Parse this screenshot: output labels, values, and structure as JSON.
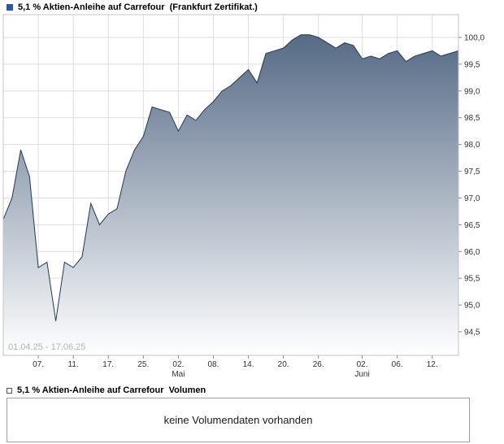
{
  "header": {
    "title": "5,1 % Aktien-Anleihe auf Carrefour  (Frankfurt Zertifikat.)"
  },
  "chart_data": {
    "type": "area",
    "title": "5,1 % Aktien-Anleihe auf Carrefour (Frankfurt Zertifikat.)",
    "date_range": "01.04.25 - 17.06.25",
    "ylim": [
      94.0,
      100.4
    ],
    "grid": true,
    "legend_position": "top-left",
    "colors": {
      "legend": "#2a54b8",
      "line": "#203a55",
      "fill_top": "#4b617e",
      "fill_bottom": "#ffffff",
      "gridline": "#dedede",
      "plot_border": "#c4c4c4",
      "tick": "#8c8c8c",
      "axis_text": "#333333"
    },
    "x": [
      "01.04.25",
      "02.04.25",
      "03.04.25",
      "04.04.25",
      "07.04.25",
      "08.04.25",
      "09.04.25",
      "10.04.25",
      "11.04.25",
      "14.04.25",
      "15.04.25",
      "16.04.25",
      "17.04.25",
      "22.04.25",
      "23.04.25",
      "24.04.25",
      "25.04.25",
      "28.04.25",
      "29.04.25",
      "30.04.25",
      "02.05.25",
      "05.05.25",
      "06.05.25",
      "07.05.25",
      "08.05.25",
      "09.05.25",
      "12.05.25",
      "13.05.25",
      "14.05.25",
      "15.05.25",
      "16.05.25",
      "19.05.25",
      "20.05.25",
      "21.05.25",
      "22.05.25",
      "23.05.25",
      "26.05.25",
      "27.05.25",
      "28.05.25",
      "29.05.25",
      "30.05.25",
      "02.06.25",
      "03.06.25",
      "04.06.25",
      "05.06.25",
      "06.06.25",
      "09.06.25",
      "10.06.25",
      "11.06.25",
      "12.06.25",
      "13.06.25",
      "16.06.25",
      "17.06.25"
    ],
    "values": [
      96.6,
      97.0,
      97.9,
      97.4,
      95.7,
      95.8,
      94.7,
      95.8,
      95.7,
      95.9,
      96.9,
      96.5,
      96.7,
      96.8,
      97.5,
      97.9,
      98.15,
      98.7,
      98.65,
      98.6,
      98.25,
      98.55,
      98.45,
      98.65,
      98.8,
      99.0,
      99.1,
      99.25,
      99.4,
      99.15,
      99.7,
      99.75,
      99.8,
      99.95,
      100.05,
      100.05,
      100.0,
      99.9,
      99.8,
      99.9,
      99.85,
      99.6,
      99.65,
      99.6,
      99.7,
      99.75,
      99.55,
      99.65,
      99.7,
      99.75,
      99.65,
      99.7,
      99.75
    ],
    "x_ticks": [
      {
        "i": 4,
        "label": "07."
      },
      {
        "i": 8,
        "label": "11."
      },
      {
        "i": 12,
        "label": "17."
      },
      {
        "i": 16,
        "label": "25."
      },
      {
        "i": 20,
        "label": "02.",
        "month": "Mai"
      },
      {
        "i": 24,
        "label": "08."
      },
      {
        "i": 28,
        "label": "14."
      },
      {
        "i": 32,
        "label": "20."
      },
      {
        "i": 36,
        "label": "26."
      },
      {
        "i": 41,
        "label": "02.",
        "month": "Juni"
      },
      {
        "i": 45,
        "label": "06."
      },
      {
        "i": 49,
        "label": "12."
      }
    ],
    "y_ticks": [
      {
        "value": 100.0,
        "label": "100,0"
      },
      {
        "value": 99.5,
        "label": "99,5"
      },
      {
        "value": 99.0,
        "label": "99,0"
      },
      {
        "value": 98.5,
        "label": "98,5"
      },
      {
        "value": 98.0,
        "label": "98,0"
      },
      {
        "value": 97.5,
        "label": "97,5"
      },
      {
        "value": 97.0,
        "label": "97,0"
      },
      {
        "value": 96.5,
        "label": "96,5"
      },
      {
        "value": 96.0,
        "label": "96,0"
      },
      {
        "value": 95.5,
        "label": "95,5"
      },
      {
        "value": 95.0,
        "label": "95,0"
      },
      {
        "value": 94.5,
        "label": "94,5"
      }
    ]
  },
  "volume": {
    "title": "5,1 % Aktien-Anleihe auf Carrefour  Volumen",
    "message": "keine Volumendaten vorhanden",
    "legend": {
      "fill": "#ffffff",
      "border": "#555555"
    }
  }
}
